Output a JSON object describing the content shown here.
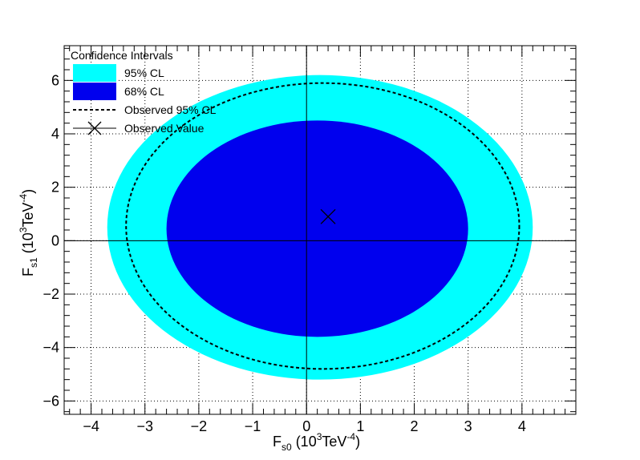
{
  "chart_data": {
    "type": "contour",
    "xlabel": {
      "main": "F",
      "sub": "s0",
      "unit_prefix": " (10",
      "sup1": "3",
      "unit_mid": "TeV",
      "sup2": "-4",
      "unit_suffix": ")"
    },
    "ylabel": {
      "main": "F",
      "sub": "s1",
      "unit_prefix": " (10",
      "sup1": "3",
      "unit_mid": "TeV",
      "sup2": "-4",
      "unit_suffix": ")"
    },
    "xlim": [
      -4.5,
      5.0
    ],
    "ylim": [
      -6.5,
      7.3
    ],
    "xticks": [
      "−4",
      "−3",
      "−2",
      "−1",
      "0",
      "1",
      "2",
      "3",
      "4"
    ],
    "yticks": [
      "−6",
      "−4",
      "−2",
      "0",
      "2",
      "4",
      "6"
    ],
    "grid": true,
    "legend": {
      "title": "Confidence Intervals",
      "position": "top-left",
      "entries": [
        {
          "label": "95% CL",
          "kind": "fill",
          "color": "#00ffff"
        },
        {
          "label": "68% CL",
          "kind": "fill",
          "color": "#0000ee"
        },
        {
          "label": "Observed 95% CL",
          "kind": "dashed-line",
          "color": "#000000"
        },
        {
          "label": "Observed Value",
          "kind": "marker",
          "color": "#000000"
        }
      ]
    },
    "regions": [
      {
        "name": "95% CL",
        "color": "#00ffff",
        "x_range": [
          -3.7,
          4.2
        ],
        "y_range": [
          -5.2,
          6.2
        ]
      },
      {
        "name": "68% CL",
        "color": "#0000ee",
        "x_range": [
          -2.6,
          3.0
        ],
        "y_range": [
          -3.6,
          4.5
        ]
      },
      {
        "name": "Observed 95% CL",
        "color": "#000000",
        "x_range": [
          -3.35,
          3.95
        ],
        "y_range": [
          -4.8,
          5.9
        ]
      }
    ],
    "observed_value": {
      "x": 0.4,
      "y": 0.9
    }
  }
}
